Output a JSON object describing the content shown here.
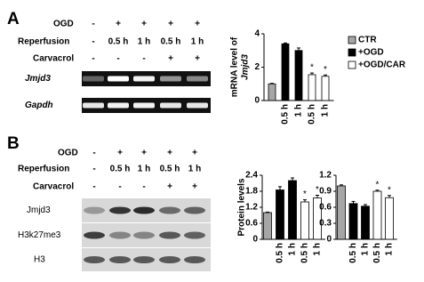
{
  "panels": [
    {
      "label": "A",
      "conditions": [
        {
          "label": "OGD",
          "cells": [
            "-",
            "+",
            "+",
            "+",
            "+"
          ]
        },
        {
          "label": "Reperfusion",
          "cells": [
            "-",
            "0.5 h",
            "1 h",
            "0.5 h",
            "1 h"
          ]
        },
        {
          "label": "Carvacrol",
          "cells": [
            "-",
            "-",
            "-",
            "+",
            "+"
          ]
        }
      ],
      "blots": [
        "Jmjd3",
        "Gapdh"
      ]
    },
    {
      "label": "B",
      "conditions": [
        {
          "label": "OGD",
          "cells": [
            "-",
            "+",
            "+",
            "+",
            "+"
          ]
        },
        {
          "label": "Reperfusion",
          "cells": [
            "-",
            "0.5 h",
            "1 h",
            "0.5 h",
            "1 h"
          ]
        },
        {
          "label": "Carvacrol",
          "cells": [
            "-",
            "-",
            "-",
            "+",
            "+"
          ]
        }
      ],
      "blots": [
        "Jmjd3",
        "H3k27me3",
        "H3"
      ]
    }
  ],
  "chart_data": [
    {
      "type": "bar",
      "ylabel": [
        "mRNA level of",
        "Jmjd3"
      ],
      "categories": [
        null,
        "0.5 h",
        "1 h",
        "0.5 h",
        "1 h"
      ],
      "values": [
        1.0,
        3.4,
        3.0,
        1.55,
        1.45
      ],
      "errors": [
        0.03,
        0.05,
        0.15,
        0.1,
        0.08
      ],
      "colors": [
        "#a6a6a6",
        "#000000",
        "#000000",
        "#ffffff",
        "#ffffff"
      ],
      "annotations": [
        null,
        null,
        null,
        "*",
        "*"
      ],
      "ylim": [
        0,
        4
      ],
      "yticks": [
        0,
        2,
        4
      ],
      "legend": [
        {
          "name": "CTR",
          "color": "#a6a6a6"
        },
        {
          "name": "+OGD",
          "color": "#000000"
        },
        {
          "name": "+OGD/CAR",
          "color": "#ffffff"
        }
      ]
    },
    {
      "type": "bar",
      "ylabel": [
        "Protein levels"
      ],
      "categories": [
        null,
        "0.5 h",
        "1 h",
        "0.5 h",
        "1 h"
      ],
      "values": [
        1.0,
        1.85,
        2.2,
        1.4,
        1.55
      ],
      "errors": [
        0.02,
        0.12,
        0.1,
        0.08,
        0.1
      ],
      "colors": [
        "#a6a6a6",
        "#000000",
        "#000000",
        "#ffffff",
        "#ffffff"
      ],
      "annotations": [
        null,
        null,
        null,
        "*",
        "*"
      ],
      "ylim": [
        0,
        2.4
      ],
      "yticks": [
        0,
        0.6,
        1.2,
        1.8,
        2.4
      ]
    },
    {
      "type": "bar",
      "categories": [
        null,
        "0.5 h",
        "1 h",
        "0.5 h",
        "1 h"
      ],
      "values": [
        1.0,
        0.67,
        0.62,
        0.9,
        0.78
      ],
      "errors": [
        0.02,
        0.04,
        0.03,
        0.02,
        0.04
      ],
      "colors": [
        "#a6a6a6",
        "#000000",
        "#000000",
        "#ffffff",
        "#ffffff"
      ],
      "annotations": [
        null,
        null,
        null,
        "*",
        "*"
      ],
      "ylim": [
        0,
        1.2
      ],
      "yticks": [
        0,
        0.3,
        0.6,
        0.9,
        1.2
      ]
    }
  ]
}
